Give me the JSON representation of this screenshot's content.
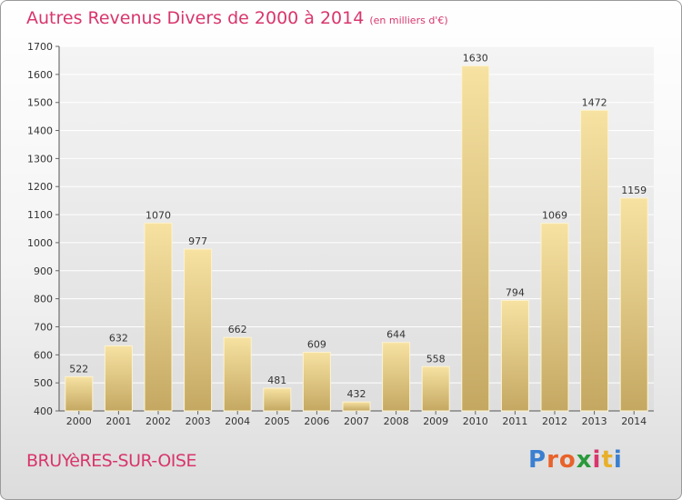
{
  "header": {
    "title": "Autres Revenus Divers de 2000 à 2014",
    "unit": "(en milliers d'€)"
  },
  "footer": {
    "commune": "BRUYèRES-SUR-OISE",
    "logo_letters": [
      "P",
      "r",
      "o",
      "x",
      "i",
      "t",
      "i"
    ],
    "logo_colors": [
      "#3a7fd0",
      "#e8632a",
      "#e8632a",
      "#2a9a3a",
      "#d8366b",
      "#e8b02a",
      "#3a7fd0"
    ]
  },
  "colors": {
    "title": "#d8366b",
    "bar_light": "#f5dd98",
    "bar_dark": "#c6ab66"
  },
  "chart_data": {
    "type": "bar",
    "categories": [
      "2000",
      "2001",
      "2002",
      "2003",
      "2004",
      "2005",
      "2006",
      "2007",
      "2008",
      "2009",
      "2010",
      "2011",
      "2012",
      "2013",
      "2014"
    ],
    "values": [
      522,
      632,
      1070,
      977,
      662,
      481,
      609,
      432,
      644,
      558,
      1630,
      794,
      1069,
      1472,
      1159
    ],
    "ylim": [
      400,
      1700
    ],
    "yticks": [
      400,
      500,
      600,
      700,
      800,
      900,
      1000,
      1100,
      1200,
      1300,
      1400,
      1500,
      1600,
      1700
    ],
    "grid": true
  }
}
